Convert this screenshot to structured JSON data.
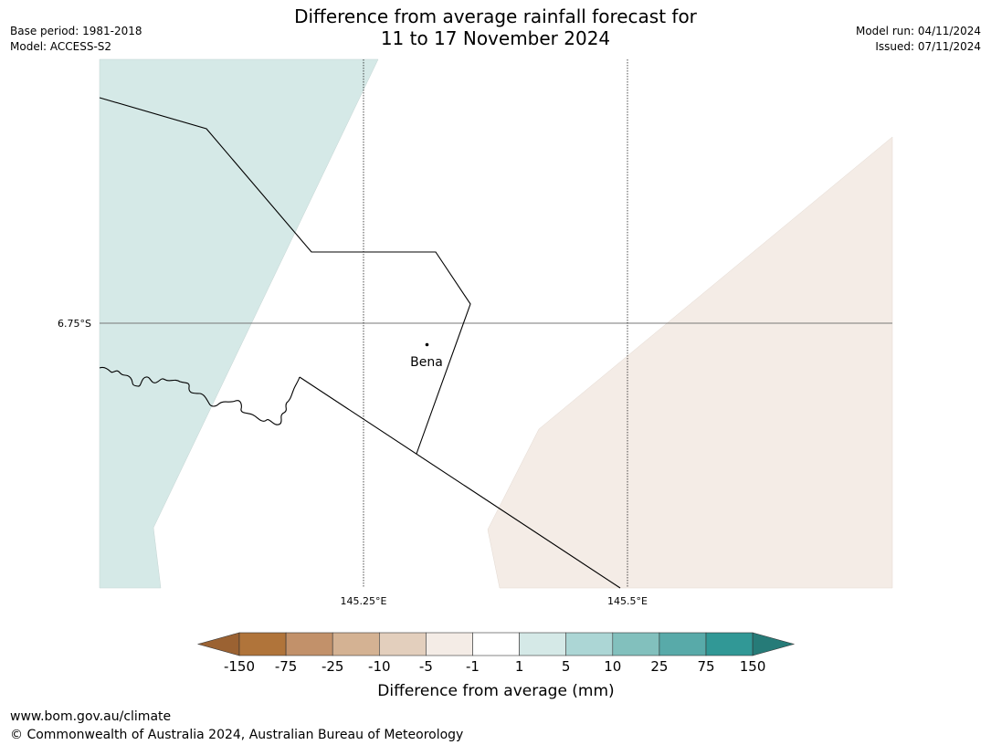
{
  "title": {
    "line1": "Difference from average rainfall forecast for",
    "line2": "11 to 17 November 2024"
  },
  "meta_left": {
    "base_period": "Base period: 1981-2018",
    "model": "Model: ACCESS-S2"
  },
  "meta_right": {
    "model_run": "Model run: 04/11/2024",
    "issued": "Issued: 07/11/2024"
  },
  "map": {
    "lat_label": "6.75°S",
    "lon_labels": [
      "145.25°E",
      "145.5°E"
    ],
    "place_label": "Bena",
    "fill_colors": {
      "wet_1_to_5": "#d5e9e7",
      "dry_minus5_to_minus1": "#f4ece6",
      "neutral": "#ffffff"
    }
  },
  "colorbar": {
    "ticks": [
      "-150",
      "-75",
      "-25",
      "-10",
      "-5",
      "-1",
      "1",
      "5",
      "10",
      "25",
      "75",
      "150"
    ],
    "colors": [
      "#9b6232",
      "#b0743a",
      "#c2916a",
      "#d4b293",
      "#e3cfbd",
      "#f4ece6",
      "#ffffff",
      "#d5e9e7",
      "#acd6d5",
      "#82c0bd",
      "#58aaa9",
      "#319896",
      "#267b78"
    ],
    "label": "Difference from average (mm)"
  },
  "footer": {
    "url": "www.bom.gov.au/climate",
    "copyright": "© Commonwealth of Australia 2024, Australian Bureau of Meteorology"
  }
}
